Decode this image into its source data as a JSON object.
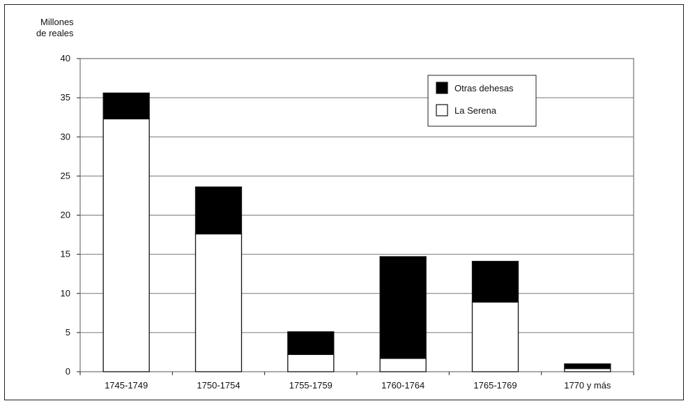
{
  "chart_data": {
    "type": "bar",
    "stacked": true,
    "title": "",
    "ylabel_lines": [
      "Millones",
      "de reales"
    ],
    "xlabel": "",
    "ylim": [
      0,
      40
    ],
    "yticks": [
      0,
      5,
      10,
      15,
      20,
      25,
      30,
      35,
      40
    ],
    "grid": true,
    "legend_position": "top-right",
    "categories": [
      "1745-1749",
      "1750-1754",
      "1755-1759",
      "1760-1764",
      "1765-1769",
      "1770 y más"
    ],
    "series": [
      {
        "name": "La Serena",
        "color": "#ffffff",
        "values": [
          32.3,
          17.6,
          2.2,
          1.7,
          8.9,
          0.4
        ]
      },
      {
        "name": "Otras dehesas",
        "color": "#000000",
        "values": [
          3.3,
          6.0,
          2.9,
          13.0,
          5.2,
          0.6
        ]
      }
    ],
    "legend_order": [
      1,
      0
    ]
  }
}
